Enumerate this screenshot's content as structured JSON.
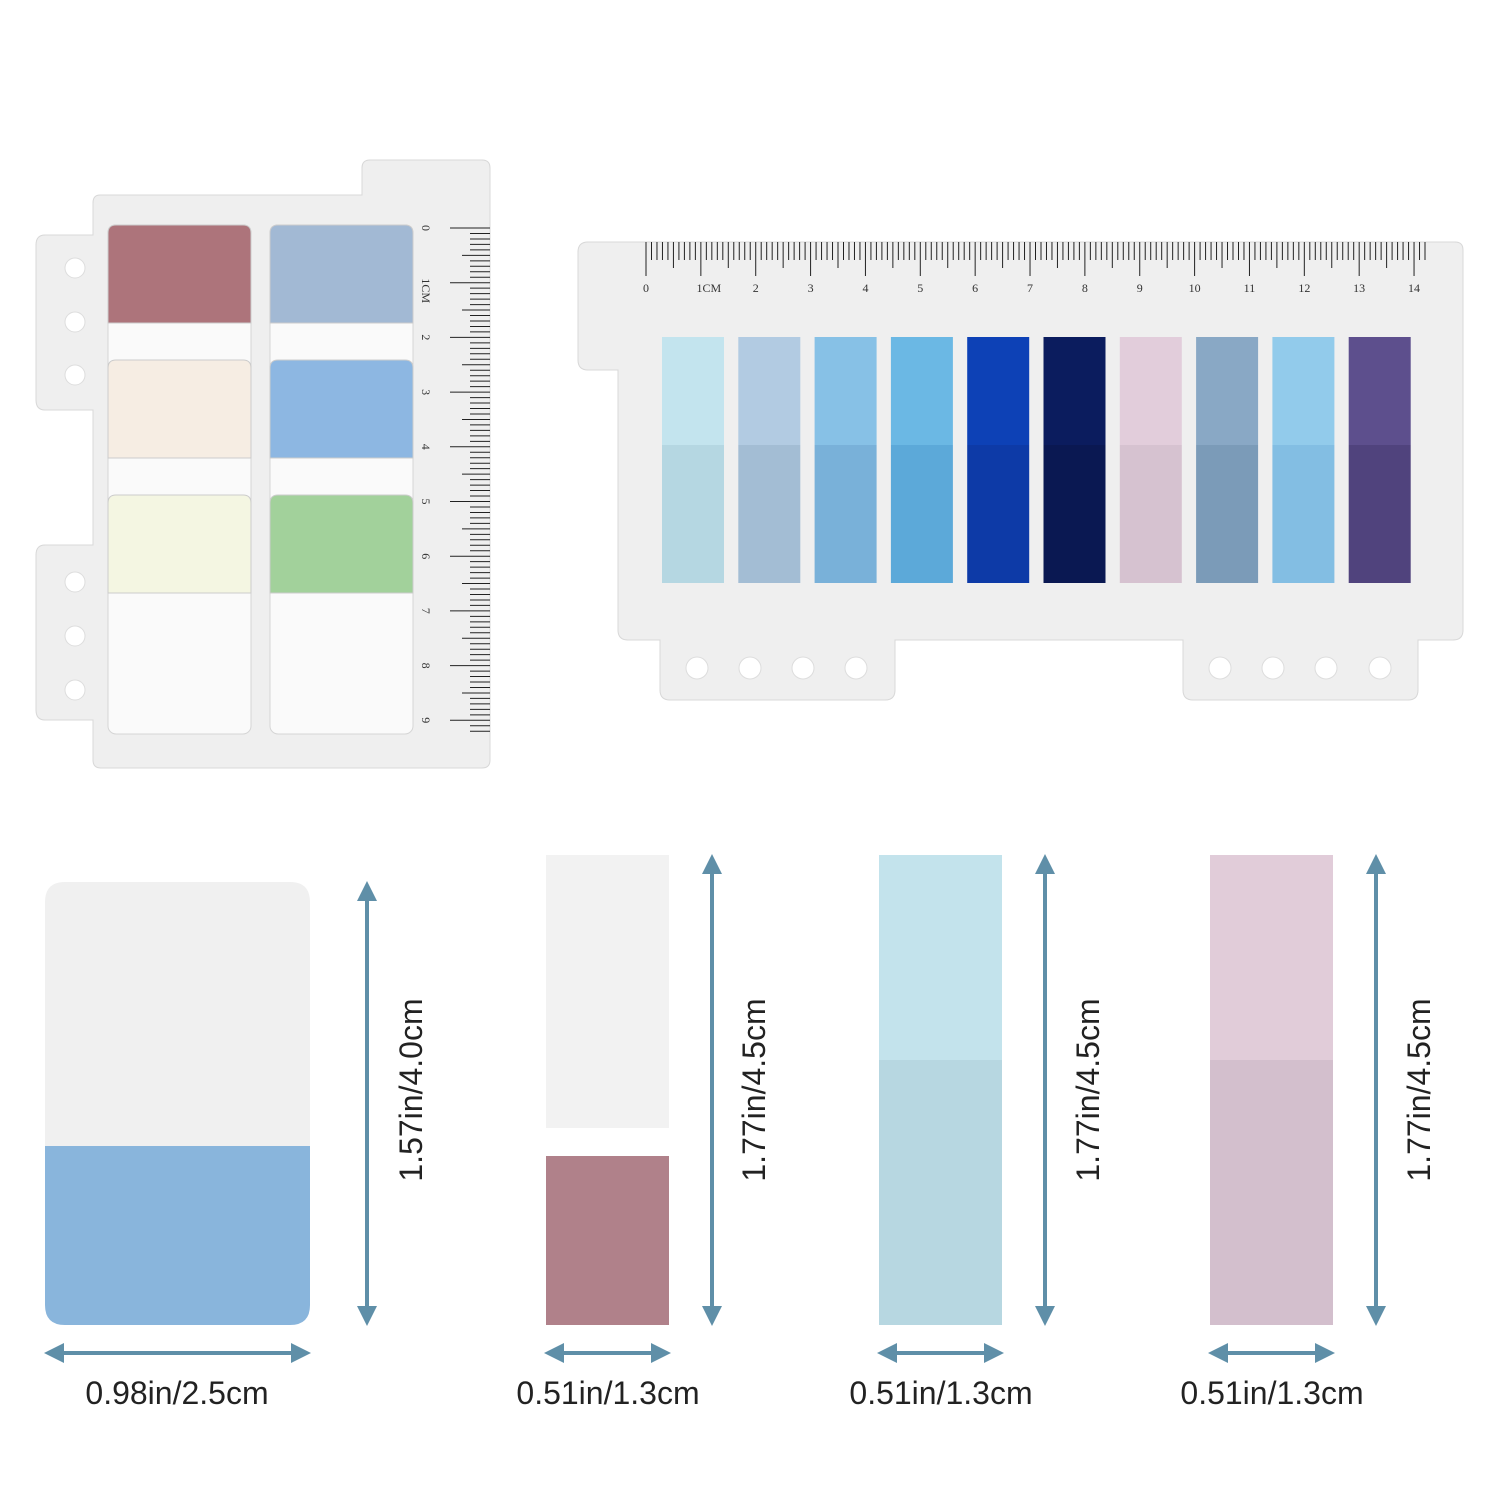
{
  "left_ruler": {
    "labels": [
      "0",
      "1CM",
      "2",
      "3",
      "4",
      "5",
      "6",
      "7",
      "8",
      "9"
    ]
  },
  "right_ruler": {
    "labels": [
      "0",
      "1CM",
      "2",
      "3",
      "4",
      "5",
      "6",
      "7",
      "8",
      "9",
      "10",
      "11",
      "12",
      "13",
      "14"
    ]
  },
  "dimensions": [
    {
      "width": "0.98in/2.5cm",
      "height": "1.57in/4.0cm"
    },
    {
      "width": "0.51in/1.3cm",
      "height": "1.77in/4.5cm"
    },
    {
      "width": "0.51in/1.3cm",
      "height": "1.77in/4.5cm"
    },
    {
      "width": "0.51in/1.3cm",
      "height": "1.77in/4.5cm"
    }
  ]
}
